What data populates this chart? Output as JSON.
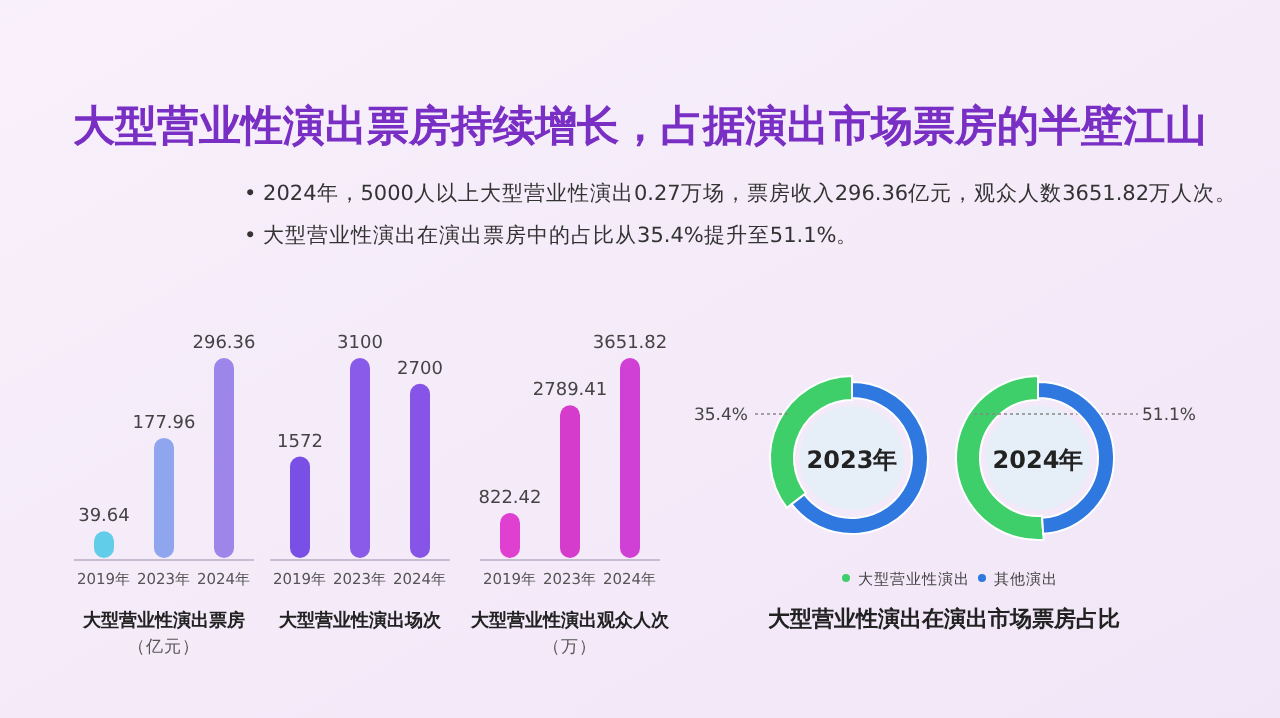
{
  "chart_data": [
    {
      "type": "other",
      "title": "大型营业性演出票房持续增长，占据演出市场票房的半壁江山",
      "annotations": [
        "• 2024年，5000人以上大型营业性演出0.27万场，票房收入296.36亿元，观众人数3651.82万人次。",
        "• 大型营业性演出在演出票房中的占比从35.4%提升至51.1%。"
      ]
    },
    {
      "type": "bar",
      "title": "大型营业性演出票房",
      "subtitle": "（亿元）",
      "categories": [
        "2019年",
        "2023年",
        "2024年"
      ],
      "values": [
        39.64,
        177.96,
        296.36
      ],
      "colors": [
        "#62cde8",
        "#8fa6ee",
        "#9d86ea"
      ],
      "data_labels": true
    },
    {
      "type": "bar",
      "title": "大型营业性演出场次",
      "categories": [
        "2019年",
        "2023年",
        "2024年"
      ],
      "values": [
        1572,
        3100,
        2700
      ],
      "colors": [
        "#7a4fe6",
        "#8a5ae8",
        "#8654e6"
      ],
      "data_labels": true
    },
    {
      "type": "bar",
      "title": "大型营业性演出观众人次",
      "subtitle": "（万）",
      "categories": [
        "2019年",
        "2023年",
        "2024年"
      ],
      "values": [
        822.42,
        2789.41,
        3651.82
      ],
      "colors": [
        "#e040d0",
        "#d63ccc",
        "#d040d4"
      ],
      "data_labels": true
    },
    {
      "type": "donut",
      "title": "2023年",
      "categories": [
        "大型营业性演出",
        "其他演出"
      ],
      "values": [
        35.4,
        64.6
      ],
      "colors": [
        "#3fcf6a",
        "#2f78e0"
      ],
      "value_labels": [
        "35.4%",
        null
      ],
      "legend": "bottom",
      "annotations": [
        "大型营业性演出在演出市场票房占比"
      ]
    },
    {
      "type": "donut",
      "title": "2024年",
      "categories": [
        null,
        null
      ],
      "values": [
        51.1,
        48.9
      ],
      "colors": [
        "#3fcf6a",
        "#2f78e0"
      ],
      "value_labels": [
        "51.1%",
        null
      ]
    }
  ]
}
